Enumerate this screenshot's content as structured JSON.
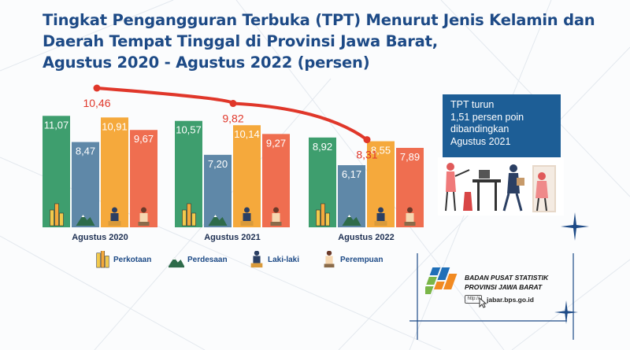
{
  "title": {
    "line1": "Tingkat Pengangguran Terbuka (TPT) Menurut Jenis Kelamin dan",
    "line2": "Daerah Tempat Tinggal di Provinsi Jawa Barat,",
    "line3": "Agustus 2020 - Agustus 2022 (persen)"
  },
  "chart_data": {
    "type": "bar",
    "categories": [
      "Agustus 2020",
      "Agustus 2021",
      "Agustus 2022"
    ],
    "series": [
      {
        "name": "Perkotaan",
        "values": [
          11.07,
          10.57,
          8.92
        ],
        "color": "#3e9e6e",
        "icon": "city-icon"
      },
      {
        "name": "Perdesaan",
        "values": [
          8.47,
          7.2,
          6.17
        ],
        "color": "#5f88a8",
        "icon": "mountain-icon"
      },
      {
        "name": "Laki-laki",
        "values": [
          10.91,
          10.14,
          8.55
        ],
        "color": "#f5a93c",
        "icon": "man-icon"
      },
      {
        "name": "Perempuan",
        "values": [
          9.67,
          9.27,
          7.89
        ],
        "color": "#ef6e50",
        "icon": "woman-icon"
      }
    ],
    "value_labels": [
      [
        "11,07",
        "8,47",
        "10,91",
        "9,67"
      ],
      [
        "10,57",
        "7,20",
        "10,14",
        "9,27"
      ],
      [
        "8,92",
        "6,17",
        "8,55",
        "7,89"
      ]
    ],
    "total_line": {
      "values": [
        10.46,
        9.82,
        8.31
      ],
      "labels": [
        "10,46",
        "9,82",
        "8,31"
      ],
      "color": "#e0372a"
    },
    "ylim": [
      0,
      12.5
    ]
  },
  "info_box": {
    "lines": [
      "TPT turun",
      "1,51 persen poin",
      "dibandingkan",
      "Agustus 2021"
    ]
  },
  "bps": {
    "line1": "BADAN PUSAT STATISTIK",
    "line2": "PROVINSI JAWA BARAT",
    "url": "jabar.bps.go.id",
    "url_badge": "http://"
  }
}
